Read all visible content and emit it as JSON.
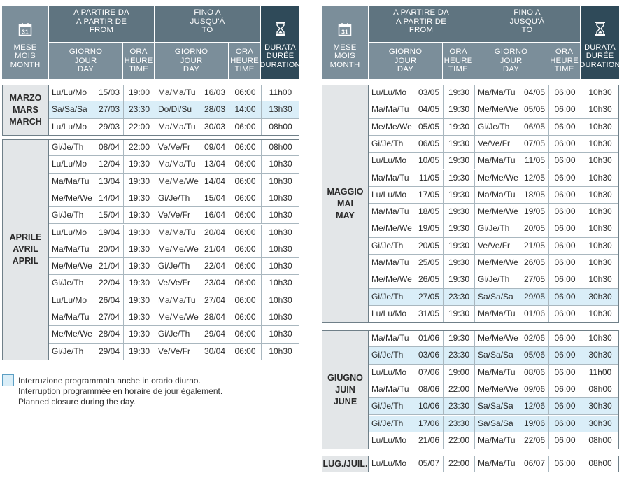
{
  "header": {
    "mese": [
      "MESE",
      "MOIS",
      "MONTH"
    ],
    "from": [
      "A PARTIRE DA",
      "A PARTIR DE",
      "FROM"
    ],
    "to": [
      "FINO A",
      "JUSQU'À",
      "TO"
    ],
    "giorno": [
      "GIORNO",
      "JOUR",
      "DAY"
    ],
    "ora": [
      "ORA",
      "HEURE",
      "TIME"
    ],
    "durata": [
      "DURATA",
      "DURÉE",
      "DURATION"
    ],
    "calendar_day": "31"
  },
  "left_table": {
    "groups": [
      {
        "month": [
          "MARZO",
          "MARS",
          "MARCH"
        ],
        "rows": [
          {
            "fday": "Lu/Lu/Mo",
            "fdate": "15/03",
            "ftime": "19:00",
            "tday": "Ma/Ma/Tu",
            "tdate": "16/03",
            "ttime": "06:00",
            "dur": "11h00",
            "hi": false
          },
          {
            "fday": "Sa/Sa/Sa",
            "fdate": "27/03",
            "ftime": "23:30",
            "tday": "Do/Di/Su",
            "tdate": "28/03",
            "ttime": "14:00",
            "dur": "13h30",
            "hi": true
          },
          {
            "fday": "Lu/Lu/Mo",
            "fdate": "29/03",
            "ftime": "22:00",
            "tday": "Ma/Ma/Tu",
            "tdate": "30/03",
            "ttime": "06:00",
            "dur": "08h00",
            "hi": false
          }
        ]
      },
      {
        "month": [
          "APRILE",
          "AVRIL",
          "APRIL"
        ],
        "rows": [
          {
            "fday": "Gi/Je/Th",
            "fdate": "08/04",
            "ftime": "22:00",
            "tday": "Ve/Ve/Fr",
            "tdate": "09/04",
            "ttime": "06:00",
            "dur": "08h00",
            "hi": false
          },
          {
            "fday": "Lu/Lu/Mo",
            "fdate": "12/04",
            "ftime": "19:30",
            "tday": "Ma/Ma/Tu",
            "tdate": "13/04",
            "ttime": "06:00",
            "dur": "10h30",
            "hi": false
          },
          {
            "fday": "Ma/Ma/Tu",
            "fdate": "13/04",
            "ftime": "19:30",
            "tday": "Me/Me/We",
            "tdate": "14/04",
            "ttime": "06:00",
            "dur": "10h30",
            "hi": false
          },
          {
            "fday": "Me/Me/We",
            "fdate": "14/04",
            "ftime": "19:30",
            "tday": "Gi/Je/Th",
            "tdate": "15/04",
            "ttime": "06:00",
            "dur": "10h30",
            "hi": false
          },
          {
            "fday": "Gi/Je/Th",
            "fdate": "15/04",
            "ftime": "19:30",
            "tday": "Ve/Ve/Fr",
            "tdate": "16/04",
            "ttime": "06:00",
            "dur": "10h30",
            "hi": false
          },
          {
            "fday": "Lu/Lu/Mo",
            "fdate": "19/04",
            "ftime": "19:30",
            "tday": "Ma/Ma/Tu",
            "tdate": "20/04",
            "ttime": "06:00",
            "dur": "10h30",
            "hi": false
          },
          {
            "fday": "Ma/Ma/Tu",
            "fdate": "20/04",
            "ftime": "19:30",
            "tday": "Me/Me/We",
            "tdate": "21/04",
            "ttime": "06:00",
            "dur": "10h30",
            "hi": false
          },
          {
            "fday": "Me/Me/We",
            "fdate": "21/04",
            "ftime": "19:30",
            "tday": "Gi/Je/Th",
            "tdate": "22/04",
            "ttime": "06:00",
            "dur": "10h30",
            "hi": false
          },
          {
            "fday": "Gi/Je/Th",
            "fdate": "22/04",
            "ftime": "19:30",
            "tday": "Ve/Ve/Fr",
            "tdate": "23/04",
            "ttime": "06:00",
            "dur": "10h30",
            "hi": false
          },
          {
            "fday": "Lu/Lu/Mo",
            "fdate": "26/04",
            "ftime": "19:30",
            "tday": "Ma/Ma/Tu",
            "tdate": "27/04",
            "ttime": "06:00",
            "dur": "10h30",
            "hi": false
          },
          {
            "fday": "Ma/Ma/Tu",
            "fdate": "27/04",
            "ftime": "19:30",
            "tday": "Me/Me/We",
            "tdate": "28/04",
            "ttime": "06:00",
            "dur": "10h30",
            "hi": false
          },
          {
            "fday": "Me/Me/We",
            "fdate": "28/04",
            "ftime": "19:30",
            "tday": "Gi/Je/Th",
            "tdate": "29/04",
            "ttime": "06:00",
            "dur": "10h30",
            "hi": false
          },
          {
            "fday": "Gi/Je/Th",
            "fdate": "29/04",
            "ftime": "19:30",
            "tday": "Ve/Ve/Fr",
            "tdate": "30/04",
            "ttime": "06:00",
            "dur": "10h30",
            "hi": false
          }
        ]
      }
    ]
  },
  "right_table": {
    "groups": [
      {
        "month": [
          "MAGGIO",
          "MAI",
          "MAY"
        ],
        "rows": [
          {
            "fday": "Lu/Lu/Mo",
            "fdate": "03/05",
            "ftime": "19:30",
            "tday": "Ma/Ma/Tu",
            "tdate": "04/05",
            "ttime": "06:00",
            "dur": "10h30",
            "hi": false
          },
          {
            "fday": "Ma/Ma/Tu",
            "fdate": "04/05",
            "ftime": "19:30",
            "tday": "Me/Me/We",
            "tdate": "05/05",
            "ttime": "06:00",
            "dur": "10h30",
            "hi": false
          },
          {
            "fday": "Me/Me/We",
            "fdate": "05/05",
            "ftime": "19:30",
            "tday": "Gi/Je/Th",
            "tdate": "06/05",
            "ttime": "06:00",
            "dur": "10h30",
            "hi": false
          },
          {
            "fday": "Gi/Je/Th",
            "fdate": "06/05",
            "ftime": "19:30",
            "tday": "Ve/Ve/Fr",
            "tdate": "07/05",
            "ttime": "06:00",
            "dur": "10h30",
            "hi": false
          },
          {
            "fday": "Lu/Lu/Mo",
            "fdate": "10/05",
            "ftime": "19:30",
            "tday": "Ma/Ma/Tu",
            "tdate": "11/05",
            "ttime": "06:00",
            "dur": "10h30",
            "hi": false
          },
          {
            "fday": "Ma/Ma/Tu",
            "fdate": "11/05",
            "ftime": "19:30",
            "tday": "Me/Me/We",
            "tdate": "12/05",
            "ttime": "06:00",
            "dur": "10h30",
            "hi": false
          },
          {
            "fday": "Lu/Lu/Mo",
            "fdate": "17/05",
            "ftime": "19:30",
            "tday": "Ma/Ma/Tu",
            "tdate": "18/05",
            "ttime": "06:00",
            "dur": "10h30",
            "hi": false
          },
          {
            "fday": "Ma/Ma/Tu",
            "fdate": "18/05",
            "ftime": "19:30",
            "tday": "Me/Me/We",
            "tdate": "19/05",
            "ttime": "06:00",
            "dur": "10h30",
            "hi": false
          },
          {
            "fday": "Me/Me/We",
            "fdate": "19/05",
            "ftime": "19:30",
            "tday": "Gi/Je/Th",
            "tdate": "20/05",
            "ttime": "06:00",
            "dur": "10h30",
            "hi": false
          },
          {
            "fday": "Gi/Je/Th",
            "fdate": "20/05",
            "ftime": "19:30",
            "tday": "Ve/Ve/Fr",
            "tdate": "21/05",
            "ttime": "06:00",
            "dur": "10h30",
            "hi": false
          },
          {
            "fday": "Ma/Ma/Tu",
            "fdate": "25/05",
            "ftime": "19:30",
            "tday": "Me/Me/We",
            "tdate": "26/05",
            "ttime": "06:00",
            "dur": "10h30",
            "hi": false
          },
          {
            "fday": "Me/Me/We",
            "fdate": "26/05",
            "ftime": "19:30",
            "tday": "Gi/Je/Th",
            "tdate": "27/05",
            "ttime": "06:00",
            "dur": "10h30",
            "hi": false
          },
          {
            "fday": "Gi/Je/Th",
            "fdate": "27/05",
            "ftime": "23:30",
            "tday": "Sa/Sa/Sa",
            "tdate": "29/05",
            "ttime": "06:00",
            "dur": "30h30",
            "hi": true
          },
          {
            "fday": "Lu/Lu/Mo",
            "fdate": "31/05",
            "ftime": "19:30",
            "tday": "Ma/Ma/Tu",
            "tdate": "01/06",
            "ttime": "06:00",
            "dur": "10h30",
            "hi": false
          }
        ]
      },
      {
        "month": [
          "GIUGNO",
          "JUIN",
          "JUNE"
        ],
        "rows": [
          {
            "fday": "Ma/Ma/Tu",
            "fdate": "01/06",
            "ftime": "19:30",
            "tday": "Me/Me/We",
            "tdate": "02/06",
            "ttime": "06:00",
            "dur": "10h30",
            "hi": false
          },
          {
            "fday": "Gi/Je/Th",
            "fdate": "03/06",
            "ftime": "23:30",
            "tday": "Sa/Sa/Sa",
            "tdate": "05/06",
            "ttime": "06:00",
            "dur": "30h30",
            "hi": true
          },
          {
            "fday": "Lu/Lu/Mo",
            "fdate": "07/06",
            "ftime": "19:00",
            "tday": "Ma/Ma/Tu",
            "tdate": "08/06",
            "ttime": "06:00",
            "dur": "11h00",
            "hi": false
          },
          {
            "fday": "Ma/Ma/Tu",
            "fdate": "08/06",
            "ftime": "22:00",
            "tday": "Me/Me/We",
            "tdate": "09/06",
            "ttime": "06:00",
            "dur": "08h00",
            "hi": false
          },
          {
            "fday": "Gi/Je/Th",
            "fdate": "10/06",
            "ftime": "23:30",
            "tday": "Sa/Sa/Sa",
            "tdate": "12/06",
            "ttime": "06:00",
            "dur": "30h30",
            "hi": true
          },
          {
            "fday": "Gi/Je/Th",
            "fdate": "17/06",
            "ftime": "23:30",
            "tday": "Sa/Sa/Sa",
            "tdate": "19/06",
            "ttime": "06:00",
            "dur": "30h30",
            "hi": true
          },
          {
            "fday": "Lu/Lu/Mo",
            "fdate": "21/06",
            "ftime": "22:00",
            "tday": "Ma/Ma/Tu",
            "tdate": "22/06",
            "ttime": "06:00",
            "dur": "08h00",
            "hi": false
          }
        ]
      },
      {
        "month": [
          "LUG./JUIL."
        ],
        "rows": [
          {
            "fday": "Lu/Lu/Mo",
            "fdate": "05/07",
            "ftime": "22:00",
            "tday": "Ma/Ma/Tu",
            "tdate": "06/07",
            "ttime": "06:00",
            "dur": "08h00",
            "hi": false
          }
        ]
      }
    ]
  },
  "legend": {
    "lines": [
      "Interruzione programmata anche in orario diurno.",
      "Interruption programmée en horaire de jour également.",
      "Planned closure during the day."
    ]
  },
  "colors": {
    "header_dark": "#2f4a59",
    "header_mid": "#5f7480",
    "header_light": "#7b8e9a",
    "highlight": "#daeef8",
    "month_bg": "#e3e6e8"
  }
}
